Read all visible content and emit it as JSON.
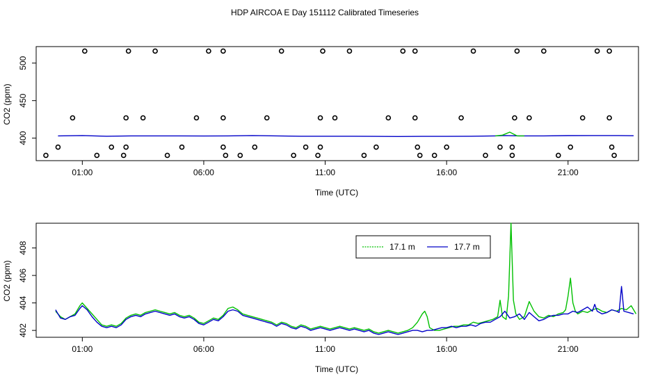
{
  "title": "HDP AIRCOA E  Day 151112  Calibrated Timeseries",
  "colors": {
    "green": "#00c000",
    "blue": "#0000c8",
    "axis": "#000000"
  },
  "chart_data": [
    {
      "type": "line",
      "title": "",
      "xlabel": "Time (UTC)",
      "ylabel": "CO2 (ppm)",
      "x_unit": "hours (UTC)",
      "xlim": [
        -0.9,
        23.9
      ],
      "ylim": [
        370,
        522
      ],
      "x_ticks": [
        {
          "x": 1,
          "label": "01:00"
        },
        {
          "x": 6,
          "label": "06:00"
        },
        {
          "x": 11,
          "label": "11:00"
        },
        {
          "x": 16,
          "label": "16:00"
        },
        {
          "x": 21,
          "label": "21:00"
        }
      ],
      "y_ticks": [
        {
          "y": 400,
          "label": "400"
        },
        {
          "y": 450,
          "label": "450"
        },
        {
          "y": 500,
          "label": "500"
        }
      ],
      "grid": false,
      "series": [
        {
          "color": "#0000c8",
          "x": [
            0.0,
            1.0,
            2.0,
            3.0,
            4.0,
            5.0,
            6.0,
            7.0,
            8.0,
            9.0,
            10.0,
            11.0,
            12.0,
            13.0,
            14.0,
            15.0,
            16.0,
            17.0,
            18.0,
            18.4,
            19.0,
            20.0,
            21.0,
            22.0,
            23.0,
            23.7
          ],
          "y": [
            403,
            403.5,
            402.5,
            403,
            403,
            403,
            402.8,
            403,
            403.5,
            403,
            402.5,
            402.5,
            402.5,
            402.3,
            402.2,
            402.3,
            402.3,
            402.5,
            403,
            403.5,
            403,
            403,
            403.4,
            403.5,
            403.5,
            403.2
          ]
        },
        {
          "color": "#00c000",
          "x": [
            18.0,
            18.3,
            18.6,
            18.9,
            19.2
          ],
          "y": [
            403,
            404,
            408,
            403,
            403
          ]
        }
      ],
      "markers": [
        {
          "x": -0.5,
          "y": 377
        },
        {
          "x": 0.0,
          "y": 388
        },
        {
          "x": 0.6,
          "y": 427
        },
        {
          "x": 1.1,
          "y": 516
        },
        {
          "x": 1.6,
          "y": 377
        },
        {
          "x": 2.2,
          "y": 388
        },
        {
          "x": 2.7,
          "y": 377
        },
        {
          "x": 2.8,
          "y": 388
        },
        {
          "x": 2.8,
          "y": 427
        },
        {
          "x": 2.9,
          "y": 516
        },
        {
          "x": 3.5,
          "y": 427
        },
        {
          "x": 4.0,
          "y": 516
        },
        {
          "x": 4.5,
          "y": 377
        },
        {
          "x": 5.1,
          "y": 388
        },
        {
          "x": 5.7,
          "y": 427
        },
        {
          "x": 6.2,
          "y": 516
        },
        {
          "x": 6.8,
          "y": 516
        },
        {
          "x": 6.8,
          "y": 427
        },
        {
          "x": 6.8,
          "y": 388
        },
        {
          "x": 6.9,
          "y": 377
        },
        {
          "x": 7.5,
          "y": 377
        },
        {
          "x": 8.1,
          "y": 388
        },
        {
          "x": 8.6,
          "y": 427
        },
        {
          "x": 9.2,
          "y": 516
        },
        {
          "x": 9.7,
          "y": 377
        },
        {
          "x": 10.2,
          "y": 388
        },
        {
          "x": 10.7,
          "y": 377
        },
        {
          "x": 10.8,
          "y": 388
        },
        {
          "x": 10.8,
          "y": 427
        },
        {
          "x": 10.9,
          "y": 516
        },
        {
          "x": 11.4,
          "y": 427
        },
        {
          "x": 12.0,
          "y": 516
        },
        {
          "x": 12.6,
          "y": 377
        },
        {
          "x": 13.1,
          "y": 388
        },
        {
          "x": 13.6,
          "y": 427
        },
        {
          "x": 14.2,
          "y": 516
        },
        {
          "x": 14.7,
          "y": 516
        },
        {
          "x": 14.7,
          "y": 427
        },
        {
          "x": 14.8,
          "y": 388
        },
        {
          "x": 14.9,
          "y": 377
        },
        {
          "x": 15.5,
          "y": 377
        },
        {
          "x": 16.0,
          "y": 388
        },
        {
          "x": 16.6,
          "y": 427
        },
        {
          "x": 17.1,
          "y": 516
        },
        {
          "x": 17.6,
          "y": 377
        },
        {
          "x": 18.2,
          "y": 388
        },
        {
          "x": 18.7,
          "y": 377
        },
        {
          "x": 18.7,
          "y": 388
        },
        {
          "x": 18.8,
          "y": 427
        },
        {
          "x": 18.9,
          "y": 516
        },
        {
          "x": 19.4,
          "y": 427
        },
        {
          "x": 20.0,
          "y": 516
        },
        {
          "x": 20.6,
          "y": 377
        },
        {
          "x": 21.1,
          "y": 388
        },
        {
          "x": 21.6,
          "y": 427
        },
        {
          "x": 22.2,
          "y": 516
        },
        {
          "x": 22.7,
          "y": 516
        },
        {
          "x": 22.7,
          "y": 427
        },
        {
          "x": 22.8,
          "y": 388
        },
        {
          "x": 22.9,
          "y": 377
        }
      ]
    },
    {
      "type": "line",
      "title": "",
      "xlabel": "Time (UTC)",
      "ylabel": "CO2 (ppm)",
      "x_unit": "hours (UTC)",
      "xlim": [
        -0.9,
        23.9
      ],
      "ylim": [
        401.5,
        409.8
      ],
      "x_ticks": [
        {
          "x": 1,
          "label": "01:00"
        },
        {
          "x": 6,
          "label": "06:00"
        },
        {
          "x": 11,
          "label": "11:00"
        },
        {
          "x": 16,
          "label": "16:00"
        },
        {
          "x": 21,
          "label": "21:00"
        }
      ],
      "y_ticks": [
        {
          "y": 402,
          "label": "402"
        },
        {
          "y": 404,
          "label": "404"
        },
        {
          "y": 406,
          "label": "406"
        },
        {
          "y": 408,
          "label": "408"
        }
      ],
      "grid": false,
      "legend": {
        "position": "top-right",
        "entries": [
          {
            "label": "17.1 m",
            "color": "#00c000"
          },
          {
            "label": "17.7 m",
            "color": "#0000c8"
          }
        ]
      },
      "series": [
        {
          "name": "17.1 m",
          "color": "#00c000",
          "x": [
            -0.1,
            0.1,
            0.3,
            0.5,
            0.7,
            0.9,
            1.0,
            1.2,
            1.4,
            1.6,
            1.8,
            2.0,
            2.2,
            2.4,
            2.6,
            2.8,
            3.0,
            3.2,
            3.4,
            3.6,
            3.8,
            4.0,
            4.2,
            4.4,
            4.6,
            4.8,
            5.0,
            5.2,
            5.4,
            5.6,
            5.8,
            6.0,
            6.2,
            6.4,
            6.6,
            6.8,
            7.0,
            7.2,
            7.4,
            7.6,
            7.8,
            8.0,
            8.2,
            8.4,
            8.6,
            8.8,
            9.0,
            9.2,
            9.4,
            9.6,
            9.8,
            10.0,
            10.2,
            10.4,
            10.6,
            10.8,
            11.0,
            11.2,
            11.4,
            11.6,
            11.8,
            12.0,
            12.2,
            12.4,
            12.6,
            12.8,
            13.0,
            13.2,
            13.4,
            13.6,
            13.8,
            14.0,
            14.2,
            14.4,
            14.6,
            14.8,
            15.0,
            15.1,
            15.2,
            15.3,
            15.5,
            15.7,
            15.9,
            16.1,
            16.3,
            16.5,
            16.7,
            16.9,
            17.1,
            17.3,
            17.5,
            17.7,
            17.9,
            18.1,
            18.2,
            18.3,
            18.45,
            18.55,
            18.65,
            18.75,
            18.85,
            19.0,
            19.2,
            19.4,
            19.6,
            19.8,
            20.0,
            20.2,
            20.4,
            20.6,
            20.8,
            20.9,
            21.0,
            21.1,
            21.2,
            21.3,
            21.4,
            21.6,
            21.8,
            22.0,
            22.2,
            22.4,
            22.6,
            22.8,
            23.0,
            23.2,
            23.4,
            23.6,
            23.8
          ],
          "y": [
            403.4,
            403.0,
            402.8,
            403.0,
            403.2,
            403.8,
            404.0,
            403.6,
            403.2,
            402.8,
            402.4,
            402.3,
            402.4,
            402.3,
            402.5,
            402.9,
            403.1,
            403.2,
            403.1,
            403.3,
            403.4,
            403.5,
            403.4,
            403.3,
            403.2,
            403.3,
            403.1,
            403.0,
            403.1,
            402.9,
            402.6,
            402.5,
            402.7,
            402.9,
            402.8,
            403.1,
            403.6,
            403.7,
            403.5,
            403.2,
            403.1,
            403.0,
            402.9,
            402.8,
            402.7,
            402.6,
            402.4,
            402.6,
            402.5,
            402.3,
            402.2,
            402.4,
            402.3,
            402.1,
            402.2,
            402.3,
            402.2,
            402.1,
            402.2,
            402.3,
            402.2,
            402.1,
            402.2,
            402.1,
            402.0,
            402.1,
            401.9,
            401.8,
            401.9,
            402.0,
            401.9,
            401.8,
            401.9,
            402.0,
            402.2,
            402.6,
            403.2,
            403.4,
            403.0,
            402.2,
            402.0,
            402.0,
            402.1,
            402.2,
            402.3,
            402.3,
            402.4,
            402.4,
            402.6,
            402.5,
            402.6,
            402.7,
            402.8,
            403.0,
            404.2,
            403.0,
            402.8,
            404.5,
            409.8,
            404.2,
            403.2,
            402.8,
            403.0,
            404.1,
            403.4,
            403.0,
            402.9,
            403.1,
            403.0,
            403.2,
            403.3,
            403.5,
            404.5,
            405.8,
            404.0,
            403.4,
            403.2,
            403.4,
            403.3,
            403.5,
            403.6,
            403.4,
            403.3,
            403.5,
            403.4,
            403.6,
            403.5,
            403.8,
            403.2
          ]
        },
        {
          "name": "17.7 m",
          "color": "#0000c8",
          "x": [
            -0.1,
            0.1,
            0.3,
            0.5,
            0.7,
            0.9,
            1.0,
            1.2,
            1.4,
            1.6,
            1.8,
            2.0,
            2.2,
            2.4,
            2.6,
            2.8,
            3.0,
            3.2,
            3.4,
            3.6,
            3.8,
            4.0,
            4.2,
            4.4,
            4.6,
            4.8,
            5.0,
            5.2,
            5.4,
            5.6,
            5.8,
            6.0,
            6.2,
            6.4,
            6.6,
            6.8,
            7.0,
            7.2,
            7.4,
            7.6,
            7.8,
            8.0,
            8.2,
            8.4,
            8.6,
            8.8,
            9.0,
            9.2,
            9.4,
            9.6,
            9.8,
            10.0,
            10.2,
            10.4,
            10.6,
            10.8,
            11.0,
            11.2,
            11.4,
            11.6,
            11.8,
            12.0,
            12.2,
            12.4,
            12.6,
            12.8,
            13.0,
            13.2,
            13.4,
            13.6,
            13.8,
            14.0,
            14.2,
            14.4,
            14.6,
            14.8,
            15.0,
            15.2,
            15.4,
            15.6,
            15.8,
            16.0,
            16.2,
            16.4,
            16.6,
            16.8,
            17.0,
            17.2,
            17.4,
            17.6,
            17.8,
            18.0,
            18.2,
            18.4,
            18.6,
            18.8,
            19.0,
            19.2,
            19.4,
            19.6,
            19.8,
            20.0,
            20.2,
            20.4,
            20.6,
            20.8,
            21.0,
            21.2,
            21.4,
            21.6,
            21.8,
            22.0,
            22.1,
            22.2,
            22.4,
            22.6,
            22.8,
            23.0,
            23.1,
            23.2,
            23.3,
            23.5,
            23.7
          ],
          "y": [
            403.5,
            402.9,
            402.8,
            403.0,
            403.1,
            403.6,
            403.8,
            403.5,
            403.0,
            402.6,
            402.3,
            402.2,
            402.3,
            402.2,
            402.4,
            402.8,
            403.0,
            403.1,
            403.0,
            403.2,
            403.3,
            403.4,
            403.3,
            403.2,
            403.1,
            403.2,
            403.0,
            402.9,
            403.0,
            402.8,
            402.5,
            402.4,
            402.6,
            402.8,
            402.7,
            403.0,
            403.4,
            403.5,
            403.4,
            403.1,
            403.0,
            402.9,
            402.8,
            402.7,
            402.6,
            402.5,
            402.3,
            402.5,
            402.4,
            402.2,
            402.1,
            402.3,
            402.2,
            402.0,
            402.1,
            402.2,
            402.1,
            402.0,
            402.1,
            402.2,
            402.1,
            402.0,
            402.1,
            402.0,
            401.9,
            402.0,
            401.8,
            401.7,
            401.8,
            401.9,
            401.8,
            401.7,
            401.8,
            401.9,
            402.0,
            402.0,
            401.9,
            402.0,
            402.0,
            402.1,
            402.2,
            402.2,
            402.3,
            402.2,
            402.3,
            402.3,
            402.4,
            402.3,
            402.5,
            402.6,
            402.6,
            402.8,
            403.0,
            403.4,
            402.9,
            403.0,
            403.2,
            402.8,
            403.3,
            403.0,
            402.7,
            402.8,
            403.0,
            403.1,
            403.1,
            403.2,
            403.2,
            403.4,
            403.3,
            403.5,
            403.7,
            403.4,
            403.9,
            403.4,
            403.2,
            403.3,
            403.5,
            403.4,
            403.3,
            405.2,
            403.4,
            403.3,
            403.2
          ]
        }
      ]
    }
  ]
}
